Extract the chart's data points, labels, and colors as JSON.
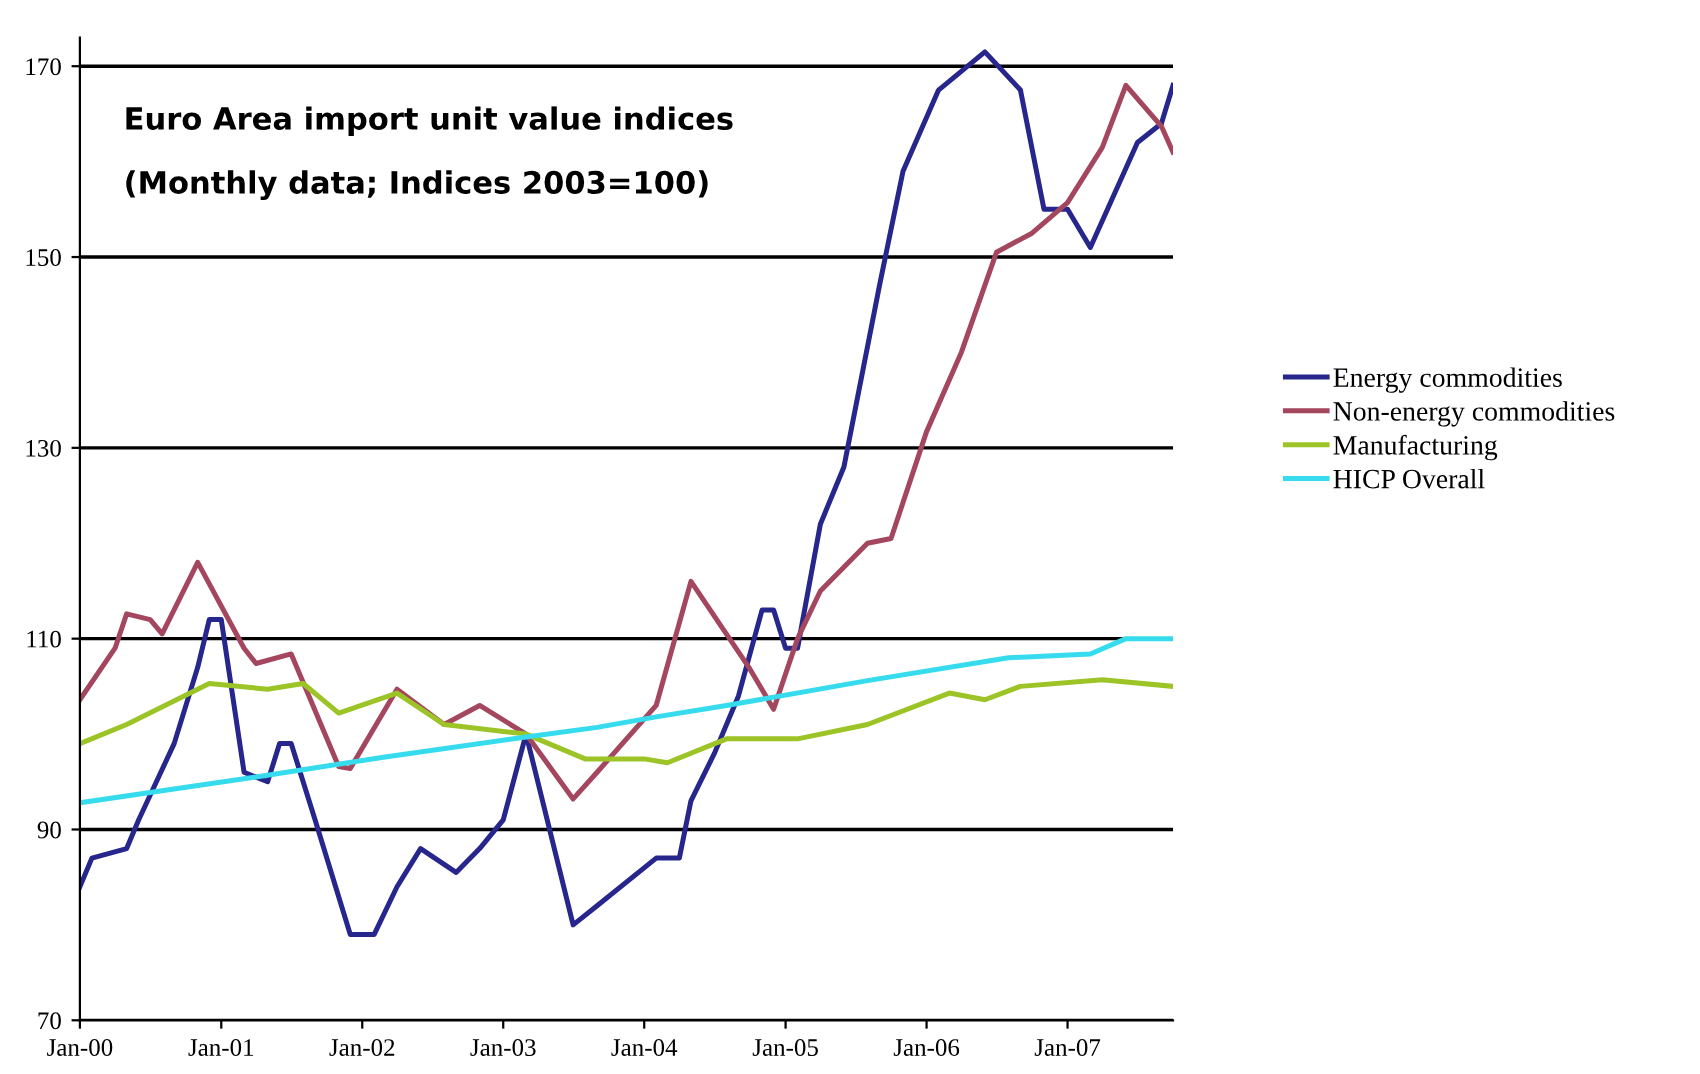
{
  "chart_data": {
    "type": "line",
    "title": "Euro Area import unit value indices",
    "subtitle": "(Monthly data; Indices 2003=100)",
    "ylim": [
      70,
      173
    ],
    "yticks": [
      70,
      90,
      110,
      130,
      150,
      170
    ],
    "xlim": [
      "2000-01",
      "2007-10"
    ],
    "xticks": [
      {
        "value": "2000-01",
        "label": "Jan-00"
      },
      {
        "value": "2001-01",
        "label": "Jan-01"
      },
      {
        "value": "2002-01",
        "label": "Jan-02"
      },
      {
        "value": "2003-01",
        "label": "Jan-03"
      },
      {
        "value": "2004-01",
        "label": "Jan-04"
      },
      {
        "value": "2005-01",
        "label": "Jan-05"
      },
      {
        "value": "2006-01",
        "label": "Jan-06"
      },
      {
        "value": "2007-01",
        "label": "Jan-07"
      }
    ],
    "grid": "y",
    "legend": "right",
    "marker": "none",
    "line_style": "solid",
    "series": [
      {
        "name": "Energy commodities",
        "color": "#26268c",
        "x": [
          "2000-01",
          "2000-02",
          "2000-05",
          "2000-06",
          "2000-09",
          "2000-11",
          "2000-12",
          "2001-01",
          "2001-03",
          "2001-05",
          "2001-06",
          "2001-07",
          "2001-09",
          "2001-12",
          "2002-02",
          "2002-04",
          "2002-06",
          "2002-09",
          "2002-11",
          "2003-01",
          "2003-03",
          "2003-07",
          "2003-09",
          "2004-02",
          "2004-04",
          "2004-05",
          "2004-07",
          "2004-09",
          "2004-11",
          "2004-12",
          "2005-01",
          "2005-02",
          "2005-04",
          "2005-06",
          "2005-09",
          "2005-11",
          "2006-02",
          "2006-06",
          "2006-09",
          "2006-11",
          "2007-01",
          "2007-03",
          "2007-07",
          "2007-09",
          "2007-10"
        ],
        "values": [
          84,
          87,
          88,
          91,
          99,
          107,
          112,
          112,
          96,
          95,
          99,
          99,
          91,
          79,
          79,
          84,
          88,
          85.5,
          88,
          91,
          100,
          80,
          82,
          87,
          87,
          93,
          98,
          104,
          113,
          113,
          109,
          109,
          122,
          128,
          147,
          159,
          167.5,
          171.5,
          167.5,
          155,
          155,
          151,
          162,
          164,
          168
        ]
      },
      {
        "name": "Non-energy commodities",
        "color": "#a3465e",
        "x": [
          "2000-01",
          "2000-04",
          "2000-05",
          "2000-07",
          "2000-08",
          "2000-11",
          "2001-03",
          "2001-04",
          "2001-07",
          "2001-11",
          "2001-12",
          "2002-04",
          "2002-08",
          "2002-11",
          "2003-03",
          "2003-07",
          "2003-09",
          "2004-02",
          "2004-05",
          "2004-10",
          "2004-12",
          "2005-02",
          "2005-04",
          "2005-08",
          "2005-10",
          "2006-01",
          "2006-04",
          "2006-07",
          "2006-10",
          "2007-01",
          "2007-04",
          "2007-06",
          "2007-09",
          "2007-10"
        ],
        "values": [
          103.6,
          109,
          112.6,
          112,
          110.5,
          118,
          109,
          107.4,
          108.4,
          96.6,
          96.4,
          104.7,
          101,
          103,
          100,
          93.2,
          96,
          103,
          116,
          106.8,
          102.6,
          110,
          115,
          120,
          120.5,
          131.7,
          140,
          150.5,
          152.5,
          155.7,
          161.5,
          168,
          163.7,
          161
        ]
      },
      {
        "name": "Manufacturing",
        "color": "#9cc427",
        "x": [
          "2000-01",
          "2000-05",
          "2000-12",
          "2001-05",
          "2001-08",
          "2001-11",
          "2002-04",
          "2002-08",
          "2003-03",
          "2003-08",
          "2004-01",
          "2004-03",
          "2004-08",
          "2005-02",
          "2005-08",
          "2006-03",
          "2006-06",
          "2006-09",
          "2007-04",
          "2007-10"
        ],
        "values": [
          99,
          101,
          105.3,
          104.7,
          105.3,
          102.2,
          104.3,
          101,
          100,
          97.4,
          97.4,
          97,
          99.5,
          99.5,
          101,
          104.3,
          103.6,
          105,
          105.7,
          105
        ]
      },
      {
        "name": "HICP Overall",
        "color": "#36dcee",
        "x": [
          "2000-01",
          "2001-04",
          "2002-03",
          "2003-03",
          "2003-09",
          "2004-02",
          "2004-08",
          "2005-08",
          "2006-08",
          "2007-03",
          "2007-06",
          "2007-10"
        ],
        "values": [
          92.8,
          95.5,
          97.6,
          99.7,
          100.7,
          101.8,
          103,
          105.6,
          108,
          108.4,
          110,
          110
        ]
      }
    ]
  }
}
